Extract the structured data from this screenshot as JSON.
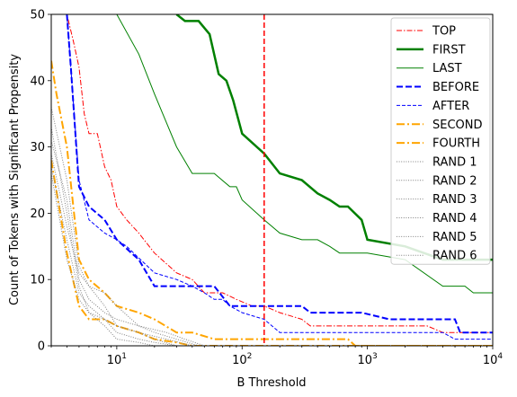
{
  "chart_data": {
    "type": "line",
    "xlabel": "B Threshold",
    "ylabel": "Count of Tokens with Significant Propensity",
    "xscale": "log",
    "xlim": [
      3,
      10000
    ],
    "ylim": [
      0,
      50
    ],
    "x_ticks": [
      {
        "value": 10,
        "base": "10",
        "exp": "1"
      },
      {
        "value": 100,
        "base": "10",
        "exp": "2"
      },
      {
        "value": 1000,
        "base": "10",
        "exp": "3"
      },
      {
        "value": 10000,
        "base": "10",
        "exp": "4"
      }
    ],
    "y_ticks": [
      0,
      10,
      20,
      30,
      40,
      50
    ],
    "grid": false,
    "legend_position": "top-right",
    "vline": {
      "x": 150,
      "color": "#ff0000",
      "style": "dashed"
    },
    "series": [
      {
        "name": "TOP",
        "color": "#ff0000",
        "style": "dashdot",
        "width": 1,
        "points": [
          [
            3,
            50
          ],
          [
            4,
            50
          ],
          [
            4.5,
            46
          ],
          [
            5,
            42
          ],
          [
            5.5,
            35
          ],
          [
            6,
            32
          ],
          [
            7,
            32
          ],
          [
            8,
            27
          ],
          [
            9,
            25
          ],
          [
            10,
            21
          ],
          [
            12,
            19
          ],
          [
            15,
            17
          ],
          [
            20,
            14
          ],
          [
            30,
            11
          ],
          [
            40,
            10
          ],
          [
            50,
            8
          ],
          [
            70,
            8
          ],
          [
            90,
            7
          ],
          [
            120,
            6
          ],
          [
            150,
            6
          ],
          [
            200,
            5
          ],
          [
            300,
            4
          ],
          [
            350,
            3
          ],
          [
            500,
            3
          ],
          [
            1000,
            3
          ],
          [
            3000,
            3
          ],
          [
            4000,
            2
          ],
          [
            10000,
            2
          ]
        ]
      },
      {
        "name": "FIRST",
        "color": "#008000",
        "style": "solid",
        "width": 2.5,
        "points": [
          [
            30,
            50
          ],
          [
            35,
            49
          ],
          [
            45,
            49
          ],
          [
            55,
            47
          ],
          [
            65,
            41
          ],
          [
            75,
            40
          ],
          [
            85,
            37
          ],
          [
            100,
            32
          ],
          [
            150,
            29
          ],
          [
            200,
            26
          ],
          [
            300,
            25
          ],
          [
            400,
            23
          ],
          [
            500,
            22
          ],
          [
            600,
            21
          ],
          [
            700,
            21
          ],
          [
            900,
            19
          ],
          [
            1000,
            16
          ],
          [
            2000,
            15
          ],
          [
            4000,
            13
          ],
          [
            10000,
            13
          ]
        ]
      },
      {
        "name": "LAST",
        "color": "#008000",
        "style": "solid",
        "width": 1,
        "points": [
          [
            10,
            50
          ],
          [
            15,
            44
          ],
          [
            20,
            38
          ],
          [
            30,
            30
          ],
          [
            40,
            26
          ],
          [
            60,
            26
          ],
          [
            80,
            24
          ],
          [
            90,
            24
          ],
          [
            100,
            22
          ],
          [
            150,
            19
          ],
          [
            200,
            17
          ],
          [
            300,
            16
          ],
          [
            400,
            16
          ],
          [
            500,
            15
          ],
          [
            600,
            14
          ],
          [
            1000,
            14
          ],
          [
            2000,
            13
          ],
          [
            4000,
            9
          ],
          [
            6000,
            9
          ],
          [
            7000,
            8
          ],
          [
            10000,
            8
          ]
        ]
      },
      {
        "name": "BEFORE",
        "color": "#0000ff",
        "style": "dashed",
        "width": 2,
        "points": [
          [
            4,
            50
          ],
          [
            4.3,
            42
          ],
          [
            5,
            24
          ],
          [
            6,
            21
          ],
          [
            8,
            19
          ],
          [
            10,
            16
          ],
          [
            15,
            13
          ],
          [
            20,
            9
          ],
          [
            30,
            9
          ],
          [
            50,
            9
          ],
          [
            60,
            9
          ],
          [
            80,
            6
          ],
          [
            100,
            6
          ],
          [
            150,
            6
          ],
          [
            300,
            6
          ],
          [
            350,
            5
          ],
          [
            900,
            5
          ],
          [
            1500,
            4
          ],
          [
            2000,
            4
          ],
          [
            5000,
            4
          ],
          [
            5500,
            2
          ],
          [
            10000,
            2
          ]
        ]
      },
      {
        "name": "AFTER",
        "color": "#0000ff",
        "style": "dashed",
        "width": 1,
        "points": [
          [
            3,
            50
          ],
          [
            4,
            50
          ],
          [
            5,
            25
          ],
          [
            6,
            19
          ],
          [
            8,
            17
          ],
          [
            10,
            16
          ],
          [
            12,
            15
          ],
          [
            20,
            11
          ],
          [
            30,
            10
          ],
          [
            40,
            9
          ],
          [
            50,
            8
          ],
          [
            60,
            7
          ],
          [
            70,
            7
          ],
          [
            80,
            6
          ],
          [
            100,
            5
          ],
          [
            150,
            4
          ],
          [
            200,
            2
          ],
          [
            300,
            2
          ],
          [
            1000,
            2
          ],
          [
            4000,
            2
          ],
          [
            5000,
            1
          ],
          [
            10000,
            1
          ]
        ]
      },
      {
        "name": "SECOND",
        "color": "#ffa500",
        "style": "dashdot",
        "width": 2,
        "points": [
          [
            3,
            43
          ],
          [
            3.3,
            38
          ],
          [
            4,
            30
          ],
          [
            5,
            13
          ],
          [
            6,
            10
          ],
          [
            8,
            8
          ],
          [
            10,
            6
          ],
          [
            15,
            5
          ],
          [
            20,
            4
          ],
          [
            30,
            2
          ],
          [
            40,
            2
          ],
          [
            60,
            1
          ],
          [
            100,
            1
          ],
          [
            700,
            1
          ],
          [
            800,
            0
          ],
          [
            10000,
            0
          ]
        ]
      },
      {
        "name": "FOURTH",
        "color": "#ffa500",
        "style": "dashdot",
        "width": 2,
        "points": [
          [
            3,
            28
          ],
          [
            4,
            14
          ],
          [
            5,
            6
          ],
          [
            6,
            4
          ],
          [
            8,
            4
          ],
          [
            10,
            3
          ],
          [
            15,
            2
          ],
          [
            20,
            1
          ],
          [
            30,
            0.5
          ],
          [
            40,
            0
          ],
          [
            10000,
            0
          ]
        ]
      },
      {
        "name": "RAND 1",
        "color": "#808080",
        "style": "dotted",
        "width": 1,
        "points": [
          [
            3,
            36
          ],
          [
            4,
            25
          ],
          [
            5,
            12
          ],
          [
            6,
            9
          ],
          [
            8,
            6
          ],
          [
            10,
            3
          ],
          [
            15,
            2
          ],
          [
            20,
            1
          ],
          [
            30,
            0
          ],
          [
            10000,
            0
          ]
        ]
      },
      {
        "name": "RAND 2",
        "color": "#808080",
        "style": "dotted",
        "width": 1,
        "points": [
          [
            3,
            33
          ],
          [
            4,
            20
          ],
          [
            5,
            9
          ],
          [
            6,
            5
          ],
          [
            8,
            4
          ],
          [
            10,
            3
          ],
          [
            15,
            2
          ],
          [
            25,
            1
          ],
          [
            40,
            0
          ],
          [
            10000,
            0
          ]
        ]
      },
      {
        "name": "RAND 3",
        "color": "#808080",
        "style": "dotted",
        "width": 1,
        "points": [
          [
            3,
            31
          ],
          [
            4,
            22
          ],
          [
            5,
            10
          ],
          [
            6,
            7
          ],
          [
            8,
            5
          ],
          [
            10,
            4
          ],
          [
            15,
            3
          ],
          [
            25,
            2
          ],
          [
            35,
            1
          ],
          [
            50,
            0
          ],
          [
            10000,
            0
          ]
        ]
      },
      {
        "name": "RAND 4",
        "color": "#808080",
        "style": "dotted",
        "width": 1,
        "points": [
          [
            3,
            29
          ],
          [
            4,
            18
          ],
          [
            5,
            11
          ],
          [
            6,
            9
          ],
          [
            8,
            8
          ],
          [
            10,
            6
          ],
          [
            15,
            3
          ],
          [
            20,
            2
          ],
          [
            30,
            1
          ],
          [
            45,
            0
          ],
          [
            10000,
            0
          ]
        ]
      },
      {
        "name": "RAND 5",
        "color": "#808080",
        "style": "dotted",
        "width": 1,
        "points": [
          [
            3,
            27
          ],
          [
            4,
            16
          ],
          [
            5,
            8
          ],
          [
            6,
            6
          ],
          [
            8,
            4
          ],
          [
            10,
            2
          ],
          [
            15,
            1
          ],
          [
            20,
            0.5
          ],
          [
            30,
            0
          ],
          [
            10000,
            0
          ]
        ]
      },
      {
        "name": "RAND 6",
        "color": "#808080",
        "style": "dotted",
        "width": 1,
        "points": [
          [
            3,
            26
          ],
          [
            4,
            13
          ],
          [
            5,
            7
          ],
          [
            6,
            5
          ],
          [
            8,
            3
          ],
          [
            10,
            1
          ],
          [
            15,
            0.5
          ],
          [
            20,
            0
          ],
          [
            10000,
            0
          ]
        ]
      }
    ]
  }
}
